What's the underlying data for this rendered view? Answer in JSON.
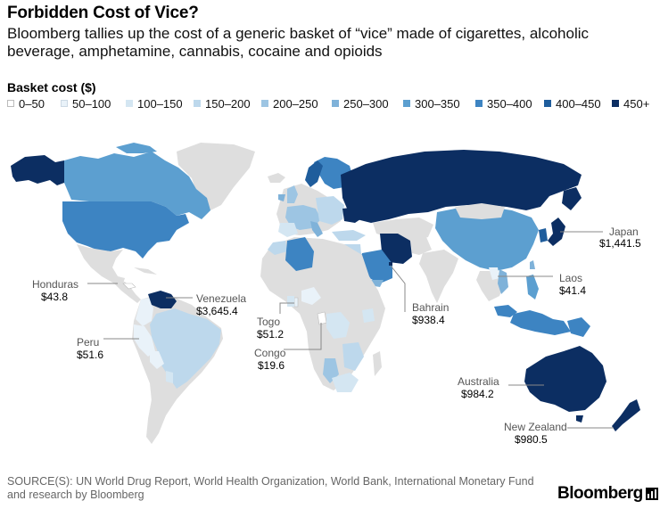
{
  "header": {
    "title": "Forbidden Cost of Vice?",
    "subtitle": "Bloomberg tallies up the cost of a generic basket of “vice” made of cigarettes, alcoholic beverage, amphetamine, cannabis, cocaine and opioids"
  },
  "legend": {
    "title": "Basket cost ($)",
    "items": [
      {
        "label": "0–50",
        "color": "#ffffff"
      },
      {
        "label": "50–100",
        "color": "#e9f2f9"
      },
      {
        "label": "100–150",
        "color": "#d4e6f2"
      },
      {
        "label": "150–200",
        "color": "#bdd8ec"
      },
      {
        "label": "200–250",
        "color": "#9dc5e3"
      },
      {
        "label": "250–300",
        "color": "#7fb2d9"
      },
      {
        "label": "300–350",
        "color": "#5c9fd0"
      },
      {
        "label": "350–400",
        "color": "#3d84c2"
      },
      {
        "label": "400–450",
        "color": "#1f5d9c"
      },
      {
        "label": "450+",
        "color": "#0c2e62"
      }
    ],
    "no_data_color": "#dedede"
  },
  "callouts": [
    {
      "country": "Japan",
      "value": "$1,441.5"
    },
    {
      "country": "Honduras",
      "value": "$43.8"
    },
    {
      "country": "Venezuela",
      "value": "$3,645.4"
    },
    {
      "country": "Laos",
      "value": "$41.4"
    },
    {
      "country": "Bahrain",
      "value": "$938.4"
    },
    {
      "country": "Togo",
      "value": "$51.2"
    },
    {
      "country": "Peru",
      "value": "$51.6"
    },
    {
      "country": "Congo",
      "value": "$19.6"
    },
    {
      "country": "Australia",
      "value": "$984.2"
    },
    {
      "country": "New Zealand",
      "value": "$980.5"
    }
  ],
  "footer": {
    "source": "SOURCE(S): UN World Drug Report, World Health Organization, World Bank, International Monetary Fund and research by Bloomberg",
    "brand": "Bloomberg"
  }
}
